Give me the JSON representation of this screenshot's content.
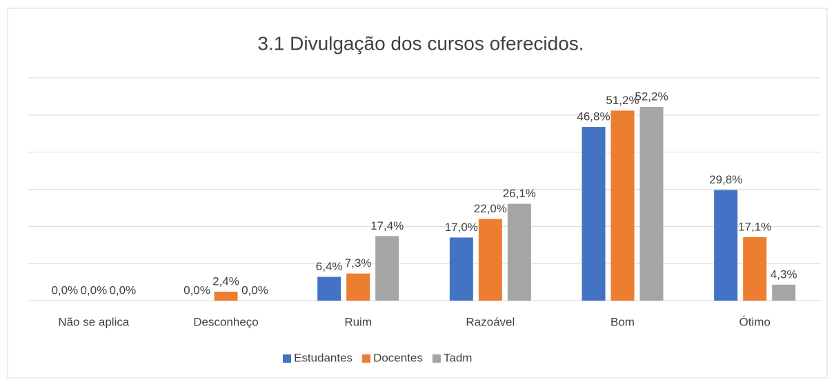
{
  "chart_data": {
    "type": "bar",
    "title": "3.1 Divulgação dos cursos oferecidos.",
    "categories": [
      "Não se aplica",
      "Desconheço",
      "Ruim",
      "Razoável",
      "Bom",
      "Ótimo"
    ],
    "series": [
      {
        "name": "Estudantes",
        "color": "#4472c4",
        "values": [
          0,
          0,
          6.4,
          17,
          46.8,
          29.8
        ],
        "value_labels": [
          "0,0%",
          "0,0%",
          "6,4%",
          "17,0%",
          "46,8%",
          "29,8%"
        ]
      },
      {
        "name": "Docentes",
        "color": "#ed7d31",
        "values": [
          0,
          2.4,
          7.3,
          22,
          51.2,
          17.1
        ],
        "value_labels": [
          "0,0%",
          "2,4%",
          "7,3%",
          "22,0%",
          "51,2%",
          "17,1%"
        ]
      },
      {
        "name": "Tadm",
        "color": "#a5a5a5",
        "values": [
          0,
          0,
          17.4,
          26.1,
          52.2,
          4.3
        ],
        "value_labels": [
          "0,0%",
          "0,0%",
          "17,4%",
          "26,1%",
          "52,2%",
          "4,3%"
        ]
      }
    ],
    "ylim": [
      0,
      60
    ],
    "yticks": [
      0,
      10,
      20,
      30,
      40,
      50,
      60
    ],
    "grid": true,
    "legend": "bottom"
  }
}
